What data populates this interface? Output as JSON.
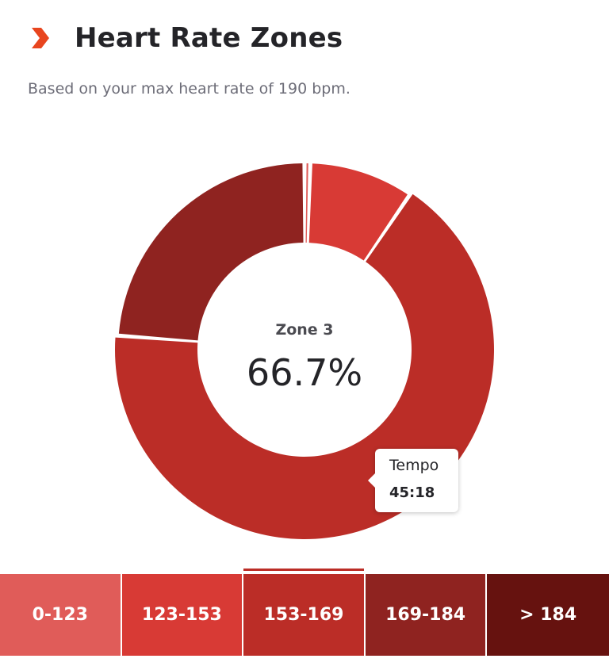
{
  "header": {
    "title": "Heart Rate Zones",
    "icon": "chevron-right-icon",
    "icon_color": "#e8451e"
  },
  "subtitle": "Based on your max heart rate of 190 bpm.",
  "chart_data": {
    "type": "pie",
    "variant": "donut",
    "unit": "percent",
    "slices": [
      {
        "zone": "0-123",
        "value": 0.5,
        "color": "#e05c59"
      },
      {
        "zone": "123-153",
        "value": 9.0,
        "color": "#d83a35"
      },
      {
        "zone": "153-169",
        "value": 66.7,
        "color": "#bb2d27"
      },
      {
        "zone": "169-184",
        "value": 23.8,
        "color": "#8f2320"
      },
      {
        "zone": "> 184",
        "value": 0.0,
        "color": "#66120f"
      }
    ],
    "selected_index": 2,
    "center": {
      "label": "Zone 3",
      "value": "66.7%"
    },
    "tooltip": {
      "name": "Tempo",
      "time": "45:18"
    }
  },
  "zones": [
    {
      "label": "0-123",
      "color": "#e05c59",
      "selected": false
    },
    {
      "label": "123-153",
      "color": "#d83a35",
      "selected": false
    },
    {
      "label": "153-169",
      "color": "#bb2d27",
      "selected": true
    },
    {
      "label": "169-184",
      "color": "#8f2320",
      "selected": false
    },
    {
      "label": "> 184",
      "color": "#66120f",
      "selected": false
    }
  ],
  "colors": {
    "title": "#242428",
    "subtitle": "#6d6d78",
    "indicator": "#bb2d27"
  }
}
